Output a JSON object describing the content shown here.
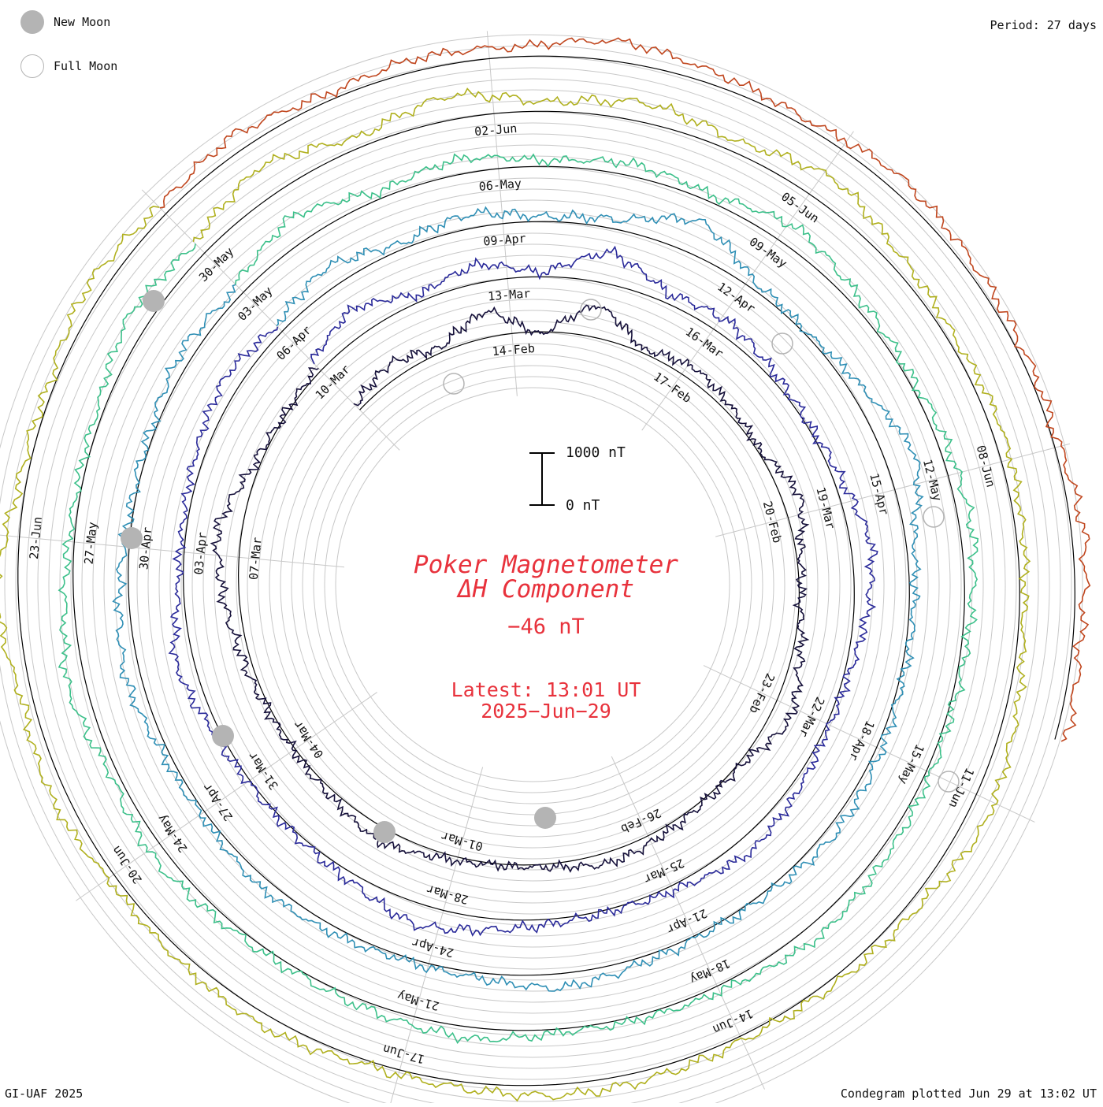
{
  "header": {
    "period": "Period: 27 days"
  },
  "legend": {
    "new_moon": "New Moon",
    "full_moon": "Full Moon"
  },
  "footer": {
    "credit": "GI-UAF 2025",
    "plotted": "Condegram plotted Jun 29 at 13:02 UT"
  },
  "center": {
    "title_line1": "Poker Magnetometer",
    "title_line2": "ΔH Component",
    "current_value": "−46 nT",
    "latest_time": "Latest: 13:01 UT",
    "latest_date": "2025−Jun−29",
    "scale_top": "1000 nT",
    "scale_bottom": "0 nT"
  },
  "colors": {
    "new_moon": "#b4b4b4",
    "full_moon": "#b4b4b4",
    "title_red": "#e8323c",
    "grid": "#c0c0c0",
    "baseline": "#000000"
  },
  "chart_data": {
    "type": "line",
    "title": "Poker Magnetometer ΔH Component",
    "period_days": 27,
    "units": "nT",
    "scale_bar_nT": 1000,
    "series": [
      {
        "color": "#15103a",
        "labels": [
          "14-Feb",
          "17-Feb",
          "20-Feb",
          "23-Feb",
          "26-Feb",
          "01-Mar",
          "04-Mar",
          "07-Mar",
          "10-Mar"
        ],
        "values": [
          -60,
          -150,
          -40,
          -260,
          40,
          -320,
          -30,
          -120,
          -60,
          -20,
          -180,
          -40,
          -10,
          -90,
          -200,
          -30,
          -20,
          -60,
          -110,
          -30,
          -10,
          -50,
          -140,
          -60,
          -20,
          -30,
          -80,
          -160,
          -240,
          -60,
          -10,
          -40
        ]
      },
      {
        "color": "#2a2a9a",
        "labels": [
          "13-Mar",
          "16-Mar",
          "19-Mar",
          "22-Mar",
          "25-Mar",
          "28-Mar",
          "31-Mar",
          "03-Apr",
          "06-Apr"
        ],
        "values": [
          -120,
          -260,
          -60,
          -180,
          -30,
          -310,
          -90,
          -140,
          -60,
          -20,
          -70,
          -200,
          -130,
          -40,
          -30,
          -90,
          -150,
          -60,
          -20,
          -40,
          -110,
          -210,
          -80,
          -30,
          -20,
          -60,
          -180,
          -50,
          -40,
          -90,
          -160,
          -70
        ]
      },
      {
        "color": "#2f8fb5",
        "labels": [
          "09-Apr",
          "12-Apr",
          "15-Apr",
          "18-Apr",
          "21-Apr",
          "24-Apr",
          "27-Apr",
          "30-Apr",
          "03-May"
        ],
        "values": [
          -80,
          -200,
          -50,
          -140,
          -40,
          -90,
          -330,
          -60,
          -20,
          -120,
          -300,
          -80,
          -40,
          -30,
          -60,
          -90,
          -40,
          -20,
          -60,
          -140,
          -50,
          -30,
          -70,
          -100,
          -40,
          -60,
          -150,
          -90,
          -30,
          -40,
          -120,
          -60
        ]
      },
      {
        "color": "#3cc08a",
        "labels": [
          "06-May",
          "09-May",
          "12-May",
          "15-May",
          "18-May",
          "21-May",
          "24-May",
          "27-May",
          "30-May"
        ],
        "values": [
          -100,
          -260,
          -60,
          -150,
          -50,
          -120,
          -60,
          -200,
          -90,
          -40,
          -80,
          -120,
          -60,
          -30,
          -50,
          -90,
          -140,
          -60,
          -40,
          -30,
          -110,
          -70,
          -40,
          -60,
          -130,
          -60,
          -180,
          -80,
          -40,
          -60,
          -200,
          -120
        ]
      },
      {
        "color": "#b0b01e",
        "labels": [
          "02-Jun",
          "05-Jun",
          "08-Jun",
          "11-Jun",
          "14-Jun",
          "17-Jun",
          "20-Jun",
          "23-Jun"
        ],
        "values": [
          -140,
          -300,
          -90,
          -240,
          -80,
          -190,
          -100,
          -260,
          -120,
          -60,
          -100,
          -70,
          -40,
          -120,
          -200,
          -90,
          -60,
          -40,
          -80,
          -110,
          -60,
          -40,
          -120,
          -90,
          -60,
          -150,
          -100,
          -220,
          -70,
          -50,
          -160,
          -90
        ]
      },
      {
        "color": "#c0461e",
        "labels": [],
        "values": [
          -80,
          -160,
          -60,
          -120,
          -90,
          -200,
          -110,
          -60,
          -140,
          -90,
          -60,
          -40,
          -120,
          -70,
          -100
        ]
      }
    ],
    "new_moon_markers": [
      "27-Feb",
      "28-Mar",
      "27-Apr",
      "27-May",
      "25-Jun"
    ],
    "full_moon_markers": [
      "12-Mar",
      "12-Apr",
      "12-May",
      "11-Jun"
    ]
  }
}
